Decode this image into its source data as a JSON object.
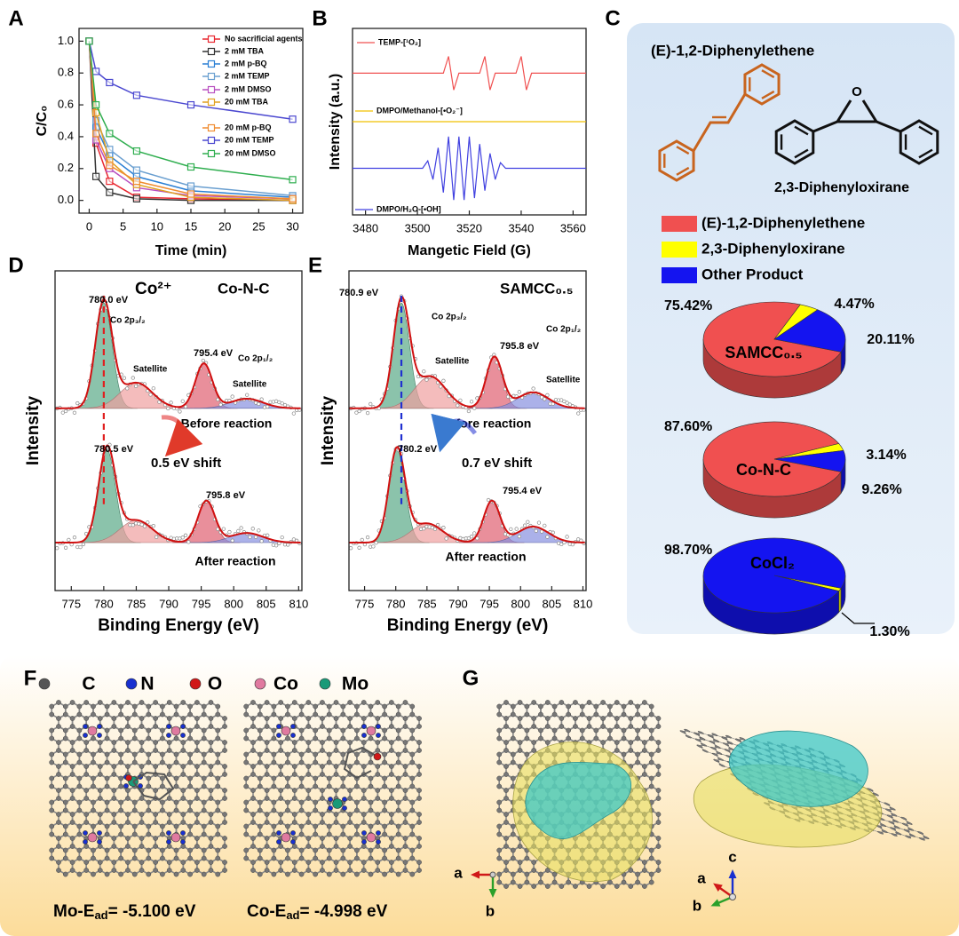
{
  "chart_data": [
    {
      "panel": "A",
      "type": "line",
      "x": [
        0,
        1,
        3,
        7,
        15,
        30
      ],
      "xlabel": "Time (min)",
      "ylabel": "C/C₀",
      "xlim": [
        -1.5,
        31.5
      ],
      "ylim": [
        -0.08,
        1.08
      ],
      "xticks": [
        0,
        5,
        10,
        15,
        20,
        25,
        30
      ],
      "yticks": [
        {
          "value": 0,
          "label": "0.0"
        },
        0.2,
        0.4,
        0.6,
        0.8,
        {
          "value": 1,
          "label": "1.0"
        }
      ],
      "series": [
        {
          "name": "No sacrificial agents",
          "color": "#e8262f",
          "values": [
            1,
            0.36,
            0.12,
            0.02,
            0.01,
            0.0
          ]
        },
        {
          "name": "2 mM TBA",
          "color": "#333333",
          "values": [
            1,
            0.15,
            0.05,
            0.01,
            0.0,
            0.0
          ]
        },
        {
          "name": "2 mM p-BQ",
          "color": "#2a7fd4",
          "values": [
            1,
            0.46,
            0.28,
            0.15,
            0.06,
            0.02
          ]
        },
        {
          "name": "2 mM TEMP",
          "color": "#6a9fd0",
          "values": [
            1,
            0.5,
            0.32,
            0.19,
            0.09,
            0.03
          ]
        },
        {
          "name": "2 mM DMSO",
          "color": "#b84fc0",
          "values": [
            1,
            0.38,
            0.2,
            0.08,
            0.03,
            0.01
          ]
        },
        {
          "name": "20 mM TBA",
          "color": "#e0a020",
          "values": [
            1,
            0.55,
            0.25,
            0.1,
            0.02,
            0.0
          ]
        },
        {
          "name": "20 mM p-BQ",
          "color": "#f08c30",
          "values": [
            1,
            0.42,
            0.22,
            0.12,
            0.04,
            0.01
          ]
        },
        {
          "name": "20 mM TEMP",
          "color": "#4b48d0",
          "values": [
            1,
            0.81,
            0.74,
            0.66,
            0.6,
            0.51
          ]
        },
        {
          "name": "20 mM DMSO",
          "color": "#2fae4f",
          "values": [
            1,
            0.6,
            0.42,
            0.31,
            0.21,
            0.13
          ]
        }
      ]
    },
    {
      "panel": "B",
      "type": "epr",
      "x": [
        3475,
        3500,
        3502,
        3504,
        3506,
        3508,
        3510,
        3512,
        3514,
        3516,
        3518,
        3520,
        3522,
        3524,
        3526,
        3528,
        3530,
        3532,
        3534,
        3536,
        3538,
        3540,
        3542,
        3544,
        3546,
        3548,
        3550,
        3565
      ],
      "xlabel": "Mangetic Field (G)",
      "ylabel": "Intensity (a.u.)",
      "xlim": [
        3475,
        3565
      ],
      "ylim": [
        0,
        1
      ],
      "xticks": [
        3480,
        3500,
        3520,
        3540,
        3560
      ],
      "series": [
        {
          "name": "TEMP-[¹O₂]",
          "color": "#f05050",
          "values": [
            0.76,
            0.76,
            0.76,
            0.76,
            0.76,
            0.76,
            0.76,
            0.85,
            0.67,
            0.76,
            0.76,
            0.76,
            0.76,
            0.76,
            0.85,
            0.67,
            0.76,
            0.76,
            0.76,
            0.76,
            0.76,
            0.85,
            0.67,
            0.76,
            0.76,
            0.76,
            0.76,
            0.76
          ]
        },
        {
          "name": "DMPO/Methanol-[•O₂⁻]",
          "color": "#f0c000",
          "values": [
            0.5,
            0.5,
            0.5,
            0.5,
            0.5,
            0.5,
            0.5,
            0.5,
            0.5,
            0.5,
            0.5,
            0.5,
            0.5,
            0.5,
            0.5,
            0.5,
            0.5,
            0.5,
            0.5,
            0.5,
            0.5,
            0.5,
            0.5,
            0.5,
            0.5,
            0.5,
            0.5,
            0.5
          ]
        },
        {
          "name": "DMPO/H₂O-[•OH]",
          "color": "#4040e0",
          "values": [
            0.25,
            0.25,
            0.25,
            0.29,
            0.19,
            0.36,
            0.12,
            0.42,
            0.08,
            0.42,
            0.08,
            0.42,
            0.09,
            0.38,
            0.13,
            0.33,
            0.19,
            0.28,
            0.25,
            0.25,
            0.25,
            0.25,
            0.25,
            0.25,
            0.25,
            0.25,
            0.25,
            0.25
          ]
        }
      ]
    },
    {
      "panel": "C",
      "type": "pie",
      "molecules": [
        "(E)-1,2-Diphenylethene",
        "2,3-Diphenyloxirane"
      ],
      "atom_label": "O",
      "categories": [
        "(E)-1,2-Diphenylethene",
        "2,3-Diphenyloxirane",
        "Other Product"
      ],
      "colors": [
        "#f05050",
        "#ffff00",
        "#1414f0"
      ],
      "pies": [
        {
          "name": "SAMCC₀.₅",
          "values": [
            75.42,
            4.47,
            20.11
          ],
          "value_labels": [
            "75.42%",
            "4.47%",
            "20.11%"
          ]
        },
        {
          "name": "Co-N-C",
          "values": [
            87.6,
            3.14,
            9.26
          ],
          "value_labels": [
            "87.60%",
            "3.14%",
            "9.26%"
          ]
        },
        {
          "name": "CoCl₂",
          "values": [
            0,
            1.3,
            98.7
          ],
          "value_labels": [
            null,
            "1.30%",
            "98.70%"
          ]
        }
      ]
    },
    {
      "panel": "D",
      "type": "xps",
      "title": "Co-N-C",
      "xlabel": "Binding Energy (eV)",
      "ylabel": "Intensity",
      "xlim": [
        772.5,
        810.5
      ],
      "ylim": [
        0,
        1
      ],
      "xticks": [
        775,
        780,
        785,
        790,
        795,
        800,
        805,
        810
      ],
      "envelope_color": "#d01010",
      "shift_color": "#e02020",
      "annotations": [
        "780.0 eV",
        "Co²⁺",
        "Co 2p₃/₂",
        "Satellite",
        "795.4 eV",
        "Co 2p₁/₂",
        "Satellite",
        "780.5 eV",
        "0.5 eV shift",
        "795.8 eV"
      ],
      "series": [
        {
          "name": "Before reaction",
          "baseline": 0.57,
          "peaks": [
            {
              "center": 780.0,
              "height": 0.33,
              "width": 1.3,
              "color": "#5aaa88"
            },
            {
              "center": 785.0,
              "height": 0.08,
              "width": 2.5,
              "color": "#f0a0a0"
            },
            {
              "center": 795.4,
              "height": 0.14,
              "width": 1.3,
              "color": "#e06070"
            },
            {
              "center": 802.0,
              "height": 0.03,
              "width": 2.5,
              "color": "#8890e0"
            }
          ]
        },
        {
          "name": "After reaction",
          "baseline": 0.15,
          "peaks": [
            {
              "center": 780.5,
              "height": 0.29,
              "width": 1.3,
              "color": "#5aaa88"
            },
            {
              "center": 785.0,
              "height": 0.07,
              "width": 2.5,
              "color": "#f0a0a0"
            },
            {
              "center": 795.8,
              "height": 0.13,
              "width": 1.3,
              "color": "#e06070"
            },
            {
              "center": 802.0,
              "height": 0.03,
              "width": 2.5,
              "color": "#8890e0"
            }
          ]
        }
      ]
    },
    {
      "panel": "E",
      "type": "xps",
      "title": "SAMCC₀.₅",
      "xlabel": "Binding Energy (eV)",
      "ylabel": "Intensity",
      "xlim": [
        772.5,
        810.5
      ],
      "ylim": [
        0,
        1
      ],
      "xticks": [
        775,
        780,
        785,
        790,
        795,
        800,
        805,
        810
      ],
      "envelope_color": "#d01010",
      "shift_color": "#2030d0",
      "annotations": [
        "780.9 eV",
        "Co 2p₃/₂",
        "795.8 eV",
        "Co 2p₁/₂",
        "Satellite",
        "Satellite",
        "780.2 eV",
        "0.7 eV shift",
        "795.4 eV"
      ],
      "series": [
        {
          "name": "Before reaction",
          "baseline": 0.57,
          "peaks": [
            {
              "center": 780.9,
              "height": 0.33,
              "width": 1.3,
              "color": "#5aaa88"
            },
            {
              "center": 785.5,
              "height": 0.1,
              "width": 2.5,
              "color": "#f0a0a0"
            },
            {
              "center": 795.8,
              "height": 0.16,
              "width": 1.3,
              "color": "#e06070"
            },
            {
              "center": 802.0,
              "height": 0.05,
              "width": 2.5,
              "color": "#8890e0"
            }
          ]
        },
        {
          "name": "After reaction",
          "baseline": 0.15,
          "peaks": [
            {
              "center": 780.2,
              "height": 0.29,
              "width": 1.3,
              "color": "#5aaa88"
            },
            {
              "center": 785.0,
              "height": 0.06,
              "width": 2.5,
              "color": "#f0a0a0"
            },
            {
              "center": 795.4,
              "height": 0.13,
              "width": 1.3,
              "color": "#e06070"
            },
            {
              "center": 802.0,
              "height": 0.05,
              "width": 2.5,
              "color": "#8890e0"
            }
          ]
        }
      ]
    }
  ],
  "structures": {
    "F": {
      "panel": "F",
      "legend": [
        "C",
        "N",
        "O",
        "Co",
        "Mo"
      ],
      "legend_colors": [
        "#555555",
        "#1830d0",
        "#d01818",
        "#e07aa0",
        "#1a9a78"
      ],
      "energies": [
        {
          "parts": [
            "Mo-E",
            "ad",
            "= -5.100 eV"
          ]
        },
        {
          "parts": [
            "Co-E",
            "ad",
            "= -4.998 eV"
          ]
        }
      ]
    },
    "G": {
      "panel": "G",
      "axes_labels": [
        "a",
        "b",
        "c",
        "a",
        "b"
      ]
    }
  }
}
